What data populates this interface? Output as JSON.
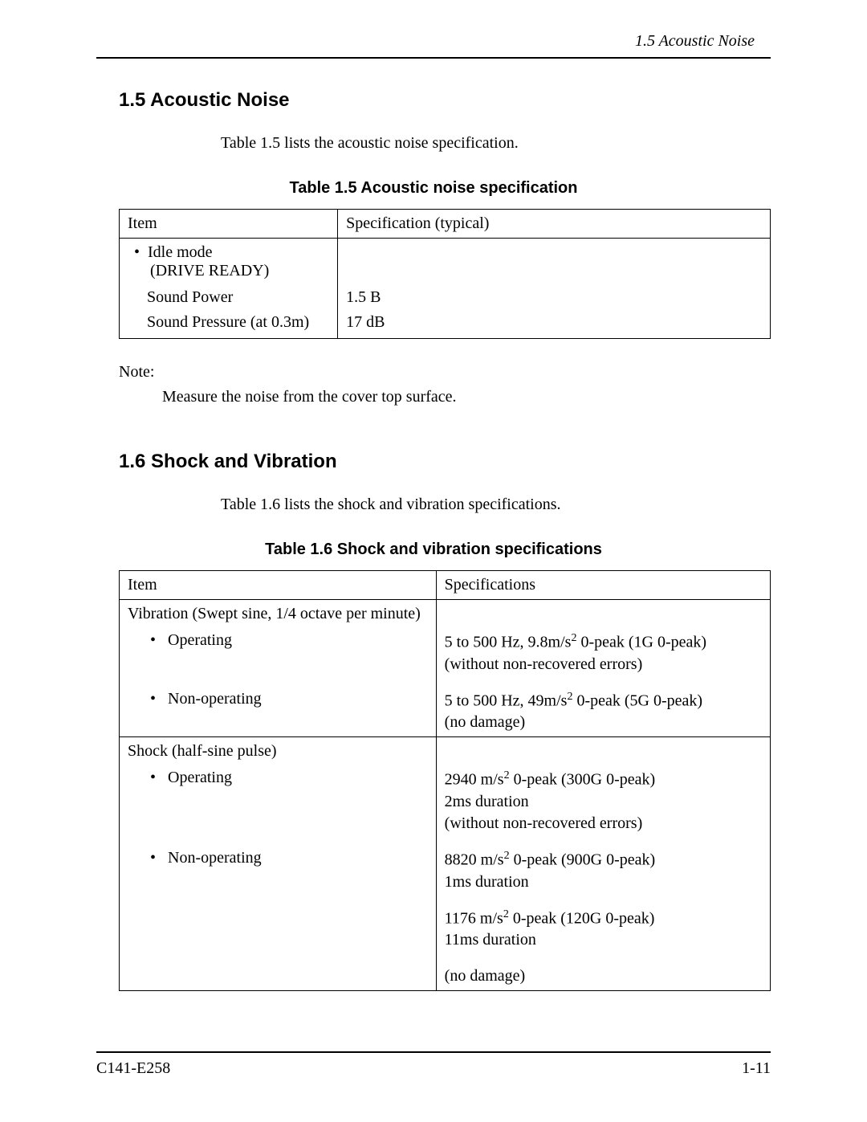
{
  "running_head": "1.5  Acoustic Noise",
  "section15": {
    "heading": "1.5  Acoustic Noise",
    "intro": "Table 1.5 lists the acoustic noise specification.",
    "table_caption": "Table 1.5  Acoustic noise specification",
    "columns": [
      "Item",
      "Specification (typical)"
    ],
    "rows": [
      {
        "item_html": "•&nbsp;&nbsp;Idle mode<br>&nbsp;&nbsp;&nbsp;&nbsp;(DRIVE READY)",
        "spec": ""
      },
      {
        "item": "Sound Power",
        "spec": "1.5 B"
      },
      {
        "item": "Sound Pressure (at 0.3m)",
        "spec": "17 dB"
      }
    ],
    "note_label": "Note:",
    "note_text": "Measure the noise from the cover top surface."
  },
  "section16": {
    "heading": "1.6  Shock and Vibration",
    "intro": "Table 1.6 lists the shock and vibration specifications.",
    "table_caption": "Table 1.6  Shock and vibration specifications",
    "columns": [
      "Item",
      "Specifications"
    ],
    "vibration_group": "Vibration (Swept sine, 1/4 octave per minute)",
    "vibration_rows": [
      {
        "label": "Operating",
        "spec_html": "5 to 500 Hz, 9.8m/s<sup>2</sup> 0-peak (1G 0-peak)<br>(without non-recovered errors)"
      },
      {
        "label": "Non-operating",
        "spec_html": "5 to 500 Hz, 49m/s<sup>2</sup> 0-peak (5G 0-peak)<br>(no damage)"
      }
    ],
    "shock_group": "Shock (half-sine pulse)",
    "shock_rows": [
      {
        "label": "Operating",
        "spec_html": "2940 m/s<sup>2</sup> 0-peak (300G 0-peak)<br>2ms duration<br>(without non-recovered errors)"
      },
      {
        "label": "Non-operating",
        "spec_html": "8820 m/s<sup>2</sup> 0-peak (900G 0-peak)<br>1ms duration"
      }
    ],
    "shock_extra_html": "1176 m/s<sup>2</sup> 0-peak (120G 0-peak)<br>11ms duration",
    "shock_final": "(no damage)"
  },
  "footer": {
    "left": "C141-E258",
    "right": "1-11"
  }
}
